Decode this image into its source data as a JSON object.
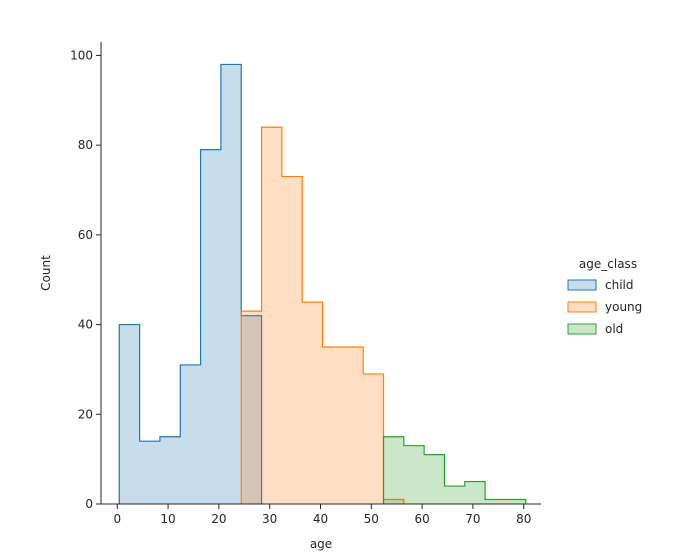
{
  "chart_data": {
    "type": "histogram",
    "xlabel": "age",
    "ylabel": "Count",
    "xlim": [
      -3.2,
      83.4
    ],
    "ylim": [
      0,
      103
    ],
    "xticks": [
      0,
      10,
      20,
      30,
      40,
      50,
      60,
      70,
      80
    ],
    "yticks": [
      0,
      20,
      40,
      60,
      80,
      100
    ],
    "grid": false,
    "legend": {
      "title": "age_class",
      "placement": "center-right outside",
      "entries": [
        "child",
        "young",
        "old"
      ]
    },
    "series": [
      {
        "name": "child",
        "line_color": "#1f77b4",
        "fill_color": "#1f77b4",
        "bins": [
          {
            "x0": 0.4,
            "x1": 4.4,
            "count": 40
          },
          {
            "x0": 4.4,
            "x1": 8.4,
            "count": 14
          },
          {
            "x0": 8.4,
            "x1": 12.4,
            "count": 15
          },
          {
            "x0": 12.4,
            "x1": 16.4,
            "count": 31
          },
          {
            "x0": 16.4,
            "x1": 20.4,
            "count": 79
          },
          {
            "x0": 20.4,
            "x1": 24.4,
            "count": 98
          },
          {
            "x0": 24.4,
            "x1": 28.4,
            "count": 42
          }
        ]
      },
      {
        "name": "young",
        "line_color": "#ff7f0e",
        "fill_color": "#ff7f0e",
        "bins": [
          {
            "x0": 24.4,
            "x1": 28.4,
            "count": 43
          },
          {
            "x0": 28.4,
            "x1": 32.4,
            "count": 84
          },
          {
            "x0": 32.4,
            "x1": 36.4,
            "count": 73
          },
          {
            "x0": 36.4,
            "x1": 40.4,
            "count": 45
          },
          {
            "x0": 40.4,
            "x1": 44.4,
            "count": 35
          },
          {
            "x0": 44.4,
            "x1": 48.4,
            "count": 35
          },
          {
            "x0": 48.4,
            "x1": 52.4,
            "count": 29
          },
          {
            "x0": 52.4,
            "x1": 56.4,
            "count": 1
          }
        ]
      },
      {
        "name": "old",
        "line_color": "#2ca02c",
        "fill_color": "#2ca02c",
        "bins": [
          {
            "x0": 52.4,
            "x1": 56.4,
            "count": 15
          },
          {
            "x0": 56.4,
            "x1": 60.4,
            "count": 13
          },
          {
            "x0": 60.4,
            "x1": 64.4,
            "count": 11
          },
          {
            "x0": 64.4,
            "x1": 68.4,
            "count": 4
          },
          {
            "x0": 68.4,
            "x1": 72.4,
            "count": 5
          },
          {
            "x0": 72.4,
            "x1": 76.4,
            "count": 1
          },
          {
            "x0": 76.4,
            "x1": 80.4,
            "count": 1
          }
        ]
      }
    ]
  }
}
